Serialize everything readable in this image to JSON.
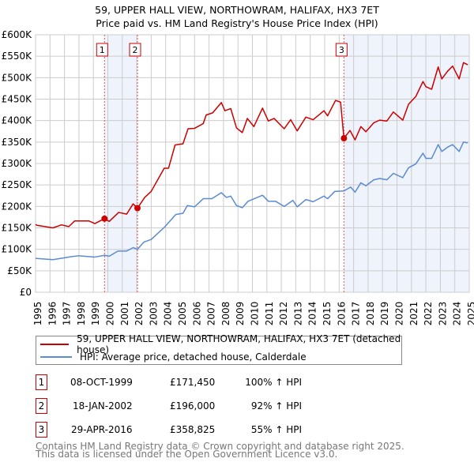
{
  "chart_data": {
    "type": "line",
    "title": "59, UPPER HALL VIEW, NORTHOWRAM, HALIFAX, HX3 7ET",
    "subtitle": "Price paid vs. HM Land Registry's House Price Index (HPI)",
    "xlim": [
      1995,
      2025
    ],
    "ylim": [
      0,
      600000
    ],
    "y_ticks": [
      "£0",
      "£50K",
      "£100K",
      "£150K",
      "£200K",
      "£250K",
      "£300K",
      "£350K",
      "£400K",
      "£450K",
      "£500K",
      "£550K",
      "£600K"
    ],
    "x_ticks": [
      "1995",
      "1996",
      "1997",
      "1998",
      "1999",
      "2000",
      "2001",
      "2002",
      "2003",
      "2004",
      "2005",
      "2006",
      "2007",
      "2008",
      "2009",
      "2010",
      "2011",
      "2012",
      "2013",
      "2014",
      "2015",
      "2016",
      "2017",
      "2018",
      "2019",
      "2020",
      "2021",
      "2022",
      "2023",
      "2024",
      "2025"
    ],
    "grid": true,
    "series": [
      {
        "name": "59, UPPER HALL VIEW, NORTHOWRAM, HALIFAX, HX3 7ET (detached house)",
        "color": "#cc0000",
        "x": [
          1995,
          1995.1,
          1996.2,
          1996.8,
          1997.3,
          1997.7,
          1998.7,
          1999.1,
          1999.77,
          2000.1,
          2000.75,
          2001.3,
          2001.75,
          2002.05,
          2002.55,
          2003,
          2003.45,
          2003.9,
          2004.2,
          2004.65,
          2005.2,
          2005.55,
          2006,
          2006.6,
          2006.8,
          2007.25,
          2007.85,
          2008.1,
          2008.5,
          2008.9,
          2009.3,
          2009.65,
          2010.1,
          2010.7,
          2011.1,
          2011.5,
          2012.2,
          2012.65,
          2013.1,
          2013.7,
          2014.2,
          2014.95,
          2015.2,
          2015.75,
          2016.1,
          2016.33,
          2016.75,
          2017.1,
          2017.5,
          2017.85,
          2018.4,
          2018.8,
          2019.3,
          2019.75,
          2020.4,
          2020.8,
          2021.3,
          2021.8,
          2022,
          2022.4,
          2022.85,
          2023.1,
          2023.5,
          2023.85,
          2024.3,
          2024.6,
          2024.9
        ],
        "y": [
          158000,
          156000,
          150000,
          157000,
          153000,
          166000,
          166000,
          160000,
          171450,
          165000,
          186000,
          182000,
          206000,
          196000,
          221000,
          235000,
          262000,
          289000,
          289000,
          343000,
          346000,
          381000,
          382000,
          393000,
          413000,
          418000,
          442000,
          423000,
          428000,
          383000,
          372000,
          405000,
          386000,
          429000,
          399000,
          405000,
          381000,
          402000,
          376000,
          408000,
          402000,
          423000,
          411000,
          447000,
          443000,
          358825,
          377000,
          355000,
          386000,
          374000,
          395000,
          401000,
          399000,
          420000,
          401000,
          438000,
          456000,
          491000,
          479000,
          473000,
          525000,
          497000,
          515000,
          527000,
          497000,
          535000,
          530000
        ]
      },
      {
        "name": "HPI: Average price, detached house, Calderdale",
        "color": "#5b8bd0",
        "x": [
          1995,
          1996.2,
          1997.5,
          1998,
          1999.1,
          1999.77,
          2000.1,
          2000.7,
          2001.3,
          2001.75,
          2002.05,
          2002.5,
          2003,
          2003.45,
          2003.9,
          2004.7,
          2005.2,
          2005.5,
          2006,
          2006.6,
          2007.2,
          2007.85,
          2008.2,
          2008.5,
          2008.9,
          2009.3,
          2009.7,
          2010.7,
          2011.1,
          2011.6,
          2012.2,
          2012.8,
          2013.1,
          2013.7,
          2014.2,
          2014.95,
          2015.2,
          2015.7,
          2016.33,
          2016.8,
          2017.1,
          2017.5,
          2017.85,
          2018.4,
          2018.8,
          2019.3,
          2019.75,
          2020.4,
          2020.8,
          2021.3,
          2021.8,
          2022,
          2022.4,
          2022.85,
          2023.1,
          2023.5,
          2023.85,
          2024.3,
          2024.6,
          2024.9
        ],
        "y": [
          79000,
          76000,
          83000,
          85000,
          82000,
          86000,
          84000,
          96000,
          96000,
          104000,
          100000,
          117000,
          123000,
          137000,
          151000,
          181000,
          184000,
          202000,
          199000,
          218000,
          218000,
          232000,
          221000,
          224000,
          202000,
          197000,
          212000,
          226000,
          212000,
          212000,
          200000,
          214000,
          199000,
          216000,
          211000,
          224000,
          218000,
          235000,
          236000,
          245000,
          233000,
          255000,
          248000,
          262000,
          265000,
          262000,
          277000,
          267000,
          290000,
          299000,
          324000,
          312000,
          312000,
          344000,
          328000,
          338000,
          344000,
          328000,
          350000,
          348000
        ]
      }
    ],
    "shaded_ranges": [
      [
        1999.77,
        2002.05
      ],
      [
        2016.33,
        2025
      ]
    ],
    "sales": [
      {
        "label": "1",
        "date": "08-OCT-1999",
        "x": 1999.77,
        "price": 171450,
        "price_text": "£171,450",
        "hpi": "100% ↑ HPI"
      },
      {
        "label": "2",
        "date": "18-JAN-2002",
        "x": 2002.05,
        "price": 196000,
        "price_text": "£196,000",
        "hpi": "92% ↑ HPI"
      },
      {
        "label": "3",
        "date": "29-APR-2016",
        "x": 2016.33,
        "price": 358825,
        "price_text": "£358,825",
        "hpi": "55% ↑ HPI"
      }
    ],
    "legend_placement": "below"
  },
  "footer": {
    "line1": "Contains HM Land Registry data © Crown copyright and database right 2025.",
    "line2": "This data is licensed under the Open Government Licence v3.0."
  }
}
